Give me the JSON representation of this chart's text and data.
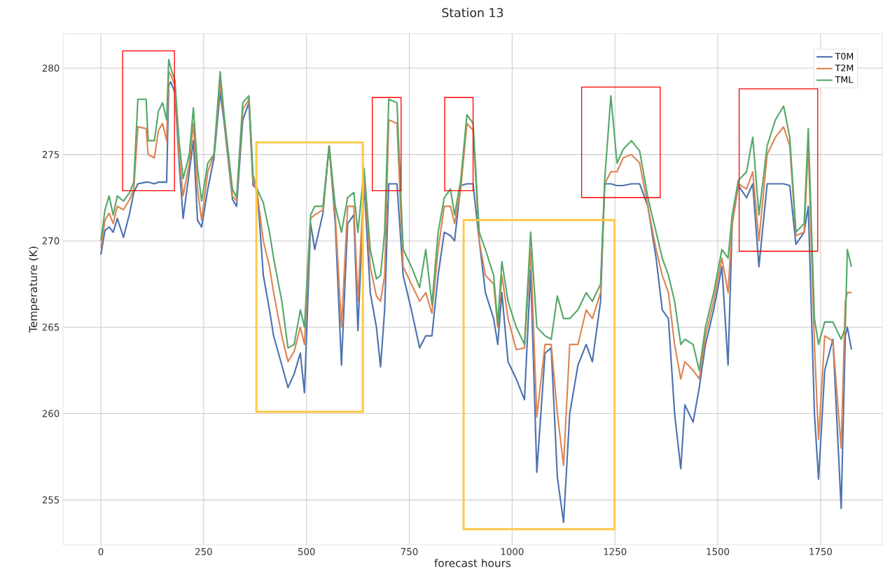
{
  "chart_data": {
    "type": "line",
    "title": "Station 13",
    "xlabel": "forecast hours",
    "ylabel": "Temperature (K)",
    "x": [
      0,
      10,
      20,
      30,
      40,
      55,
      70,
      80,
      90,
      110,
      115,
      130,
      140,
      150,
      160,
      165,
      170,
      180,
      190,
      200,
      215,
      225,
      235,
      245,
      260,
      275,
      290,
      300,
      320,
      330,
      345,
      360,
      370,
      380,
      395,
      410,
      420,
      440,
      455,
      470,
      485,
      495,
      510,
      520,
      540,
      555,
      570,
      585,
      600,
      615,
      625,
      640,
      655,
      670,
      680,
      690,
      700,
      720,
      735,
      755,
      775,
      790,
      805,
      820,
      835,
      850,
      860,
      875,
      890,
      905,
      920,
      935,
      955,
      965,
      975,
      990,
      1010,
      1030,
      1045,
      1060,
      1080,
      1095,
      1110,
      1125,
      1140,
      1160,
      1180,
      1195,
      1215,
      1225,
      1240,
      1255,
      1270,
      1290,
      1310,
      1330,
      1350,
      1365,
      1380,
      1395,
      1410,
      1420,
      1440,
      1455,
      1470,
      1490,
      1510,
      1525,
      1535,
      1550,
      1570,
      1585,
      1600,
      1620,
      1640,
      1660,
      1675,
      1690,
      1710,
      1720,
      1735,
      1745,
      1760,
      1780,
      1800,
      1810,
      1815,
      1825
    ],
    "series": [
      {
        "name": "T0M",
        "color": "#4c72b0",
        "values": [
          269.2,
          270.6,
          270.8,
          270.5,
          271.3,
          270.2,
          271.6,
          272.8,
          273.3,
          273.4,
          273.4,
          273.3,
          273.4,
          273.4,
          273.4,
          279.0,
          279.2,
          278.6,
          274.6,
          271.3,
          274.0,
          275.8,
          271.2,
          270.8,
          273.0,
          274.8,
          278.6,
          276.8,
          272.4,
          272.0,
          277.0,
          278.0,
          273.2,
          273.0,
          268.0,
          266.0,
          264.5,
          262.8,
          261.5,
          262.3,
          263.5,
          261.2,
          271.0,
          269.5,
          271.6,
          275.5,
          271.0,
          262.8,
          271.0,
          271.5,
          264.8,
          273.3,
          267.0,
          265.0,
          262.7,
          266.0,
          273.3,
          273.3,
          268.0,
          266.0,
          263.8,
          264.5,
          264.5,
          268.0,
          270.5,
          270.3,
          270.0,
          273.2,
          273.3,
          273.3,
          270.0,
          267.0,
          265.5,
          264.0,
          267.0,
          263.0,
          262.0,
          260.8,
          268.3,
          256.6,
          263.5,
          263.8,
          256.3,
          253.7,
          260.0,
          262.8,
          264.0,
          263.0,
          266.5,
          273.3,
          273.3,
          273.2,
          273.2,
          273.3,
          273.3,
          272.0,
          269.0,
          266.0,
          265.5,
          260.0,
          256.8,
          260.5,
          259.5,
          261.5,
          264.0,
          266.0,
          268.5,
          262.8,
          271.0,
          273.2,
          272.5,
          273.3,
          268.5,
          273.3,
          273.3,
          273.3,
          273.2,
          269.8,
          270.5,
          272.0,
          260.0,
          256.2,
          262.5,
          264.3,
          254.5,
          264.5,
          265.0,
          263.7
        ]
      },
      {
        "name": "T2M",
        "color": "#dd8452",
        "values": [
          269.6,
          271.2,
          271.6,
          271.0,
          272.0,
          271.8,
          272.4,
          273.0,
          276.6,
          276.5,
          275.0,
          274.8,
          276.4,
          276.8,
          275.8,
          279.8,
          279.6,
          279.0,
          275.0,
          272.6,
          274.5,
          276.8,
          273.0,
          271.2,
          274.0,
          275.0,
          279.2,
          277.0,
          272.6,
          272.3,
          277.6,
          278.2,
          273.5,
          272.8,
          270.0,
          268.5,
          267.0,
          264.5,
          263.0,
          263.6,
          265.0,
          264.0,
          271.3,
          271.5,
          271.8,
          275.5,
          271.5,
          265.0,
          272.0,
          272.0,
          266.5,
          273.8,
          268.5,
          266.8,
          266.5,
          268.0,
          277.0,
          276.8,
          268.5,
          267.5,
          266.5,
          267.0,
          265.8,
          269.5,
          272.0,
          272.0,
          271.0,
          273.0,
          276.8,
          276.4,
          270.0,
          268.0,
          267.5,
          265.0,
          268.0,
          265.5,
          263.7,
          263.8,
          269.5,
          259.8,
          264.0,
          264.0,
          260.0,
          257.0,
          264.0,
          264.0,
          266.0,
          265.5,
          267.0,
          273.3,
          274.0,
          274.0,
          274.8,
          275.0,
          274.5,
          272.0,
          269.5,
          268.0,
          267.0,
          264.0,
          262.0,
          263.0,
          262.5,
          262.0,
          264.5,
          266.5,
          269.0,
          267.0,
          271.0,
          273.3,
          273.0,
          274.0,
          270.0,
          275.0,
          276.0,
          276.6,
          275.5,
          270.3,
          270.5,
          275.5,
          264.0,
          258.5,
          264.5,
          264.2,
          258.0,
          266.5,
          267.0,
          267.0
        ]
      },
      {
        "name": "TML",
        "color": "#55a868",
        "values": [
          270.0,
          271.8,
          272.6,
          271.5,
          272.6,
          272.3,
          272.8,
          273.4,
          278.2,
          278.2,
          275.8,
          275.8,
          277.5,
          278.0,
          277.0,
          280.5,
          280.0,
          279.3,
          275.8,
          273.6,
          275.0,
          277.7,
          274.2,
          272.3,
          274.5,
          275.0,
          279.8,
          277.2,
          273.0,
          272.5,
          278.0,
          278.4,
          273.8,
          273.0,
          272.2,
          270.5,
          269.0,
          266.5,
          263.8,
          264.0,
          266.0,
          265.0,
          271.5,
          272.0,
          272.0,
          275.5,
          272.0,
          270.5,
          272.5,
          272.8,
          270.5,
          274.2,
          269.5,
          267.8,
          268.0,
          270.5,
          278.2,
          278.0,
          269.5,
          268.5,
          267.3,
          269.5,
          266.3,
          270.5,
          272.5,
          273.0,
          271.5,
          273.5,
          277.3,
          276.8,
          270.5,
          269.5,
          268.0,
          265.2,
          268.8,
          266.5,
          265.0,
          264.0,
          270.5,
          265.0,
          264.5,
          264.3,
          266.8,
          265.5,
          265.5,
          266.0,
          267.0,
          266.5,
          267.5,
          273.5,
          278.4,
          274.5,
          275.3,
          275.8,
          275.2,
          272.5,
          270.5,
          269.0,
          268.0,
          266.5,
          264.0,
          264.3,
          264.0,
          262.5,
          265.0,
          267.0,
          269.5,
          269.0,
          271.5,
          273.5,
          274.0,
          276.0,
          271.5,
          275.5,
          277.0,
          277.8,
          276.0,
          270.5,
          271.0,
          276.5,
          265.5,
          264.0,
          265.3,
          265.3,
          264.3,
          265.0,
          269.5,
          268.5
        ]
      }
    ],
    "xlim": [
      -92,
      1900
    ],
    "ylim": [
      252.4,
      282
    ],
    "xticks": [
      0,
      250,
      500,
      750,
      1000,
      1250,
      1500,
      1750
    ],
    "yticks": [
      255,
      260,
      265,
      270,
      275,
      280
    ],
    "grid": true,
    "legend": "top right",
    "marker": "none",
    "line_style": "solid"
  }
}
